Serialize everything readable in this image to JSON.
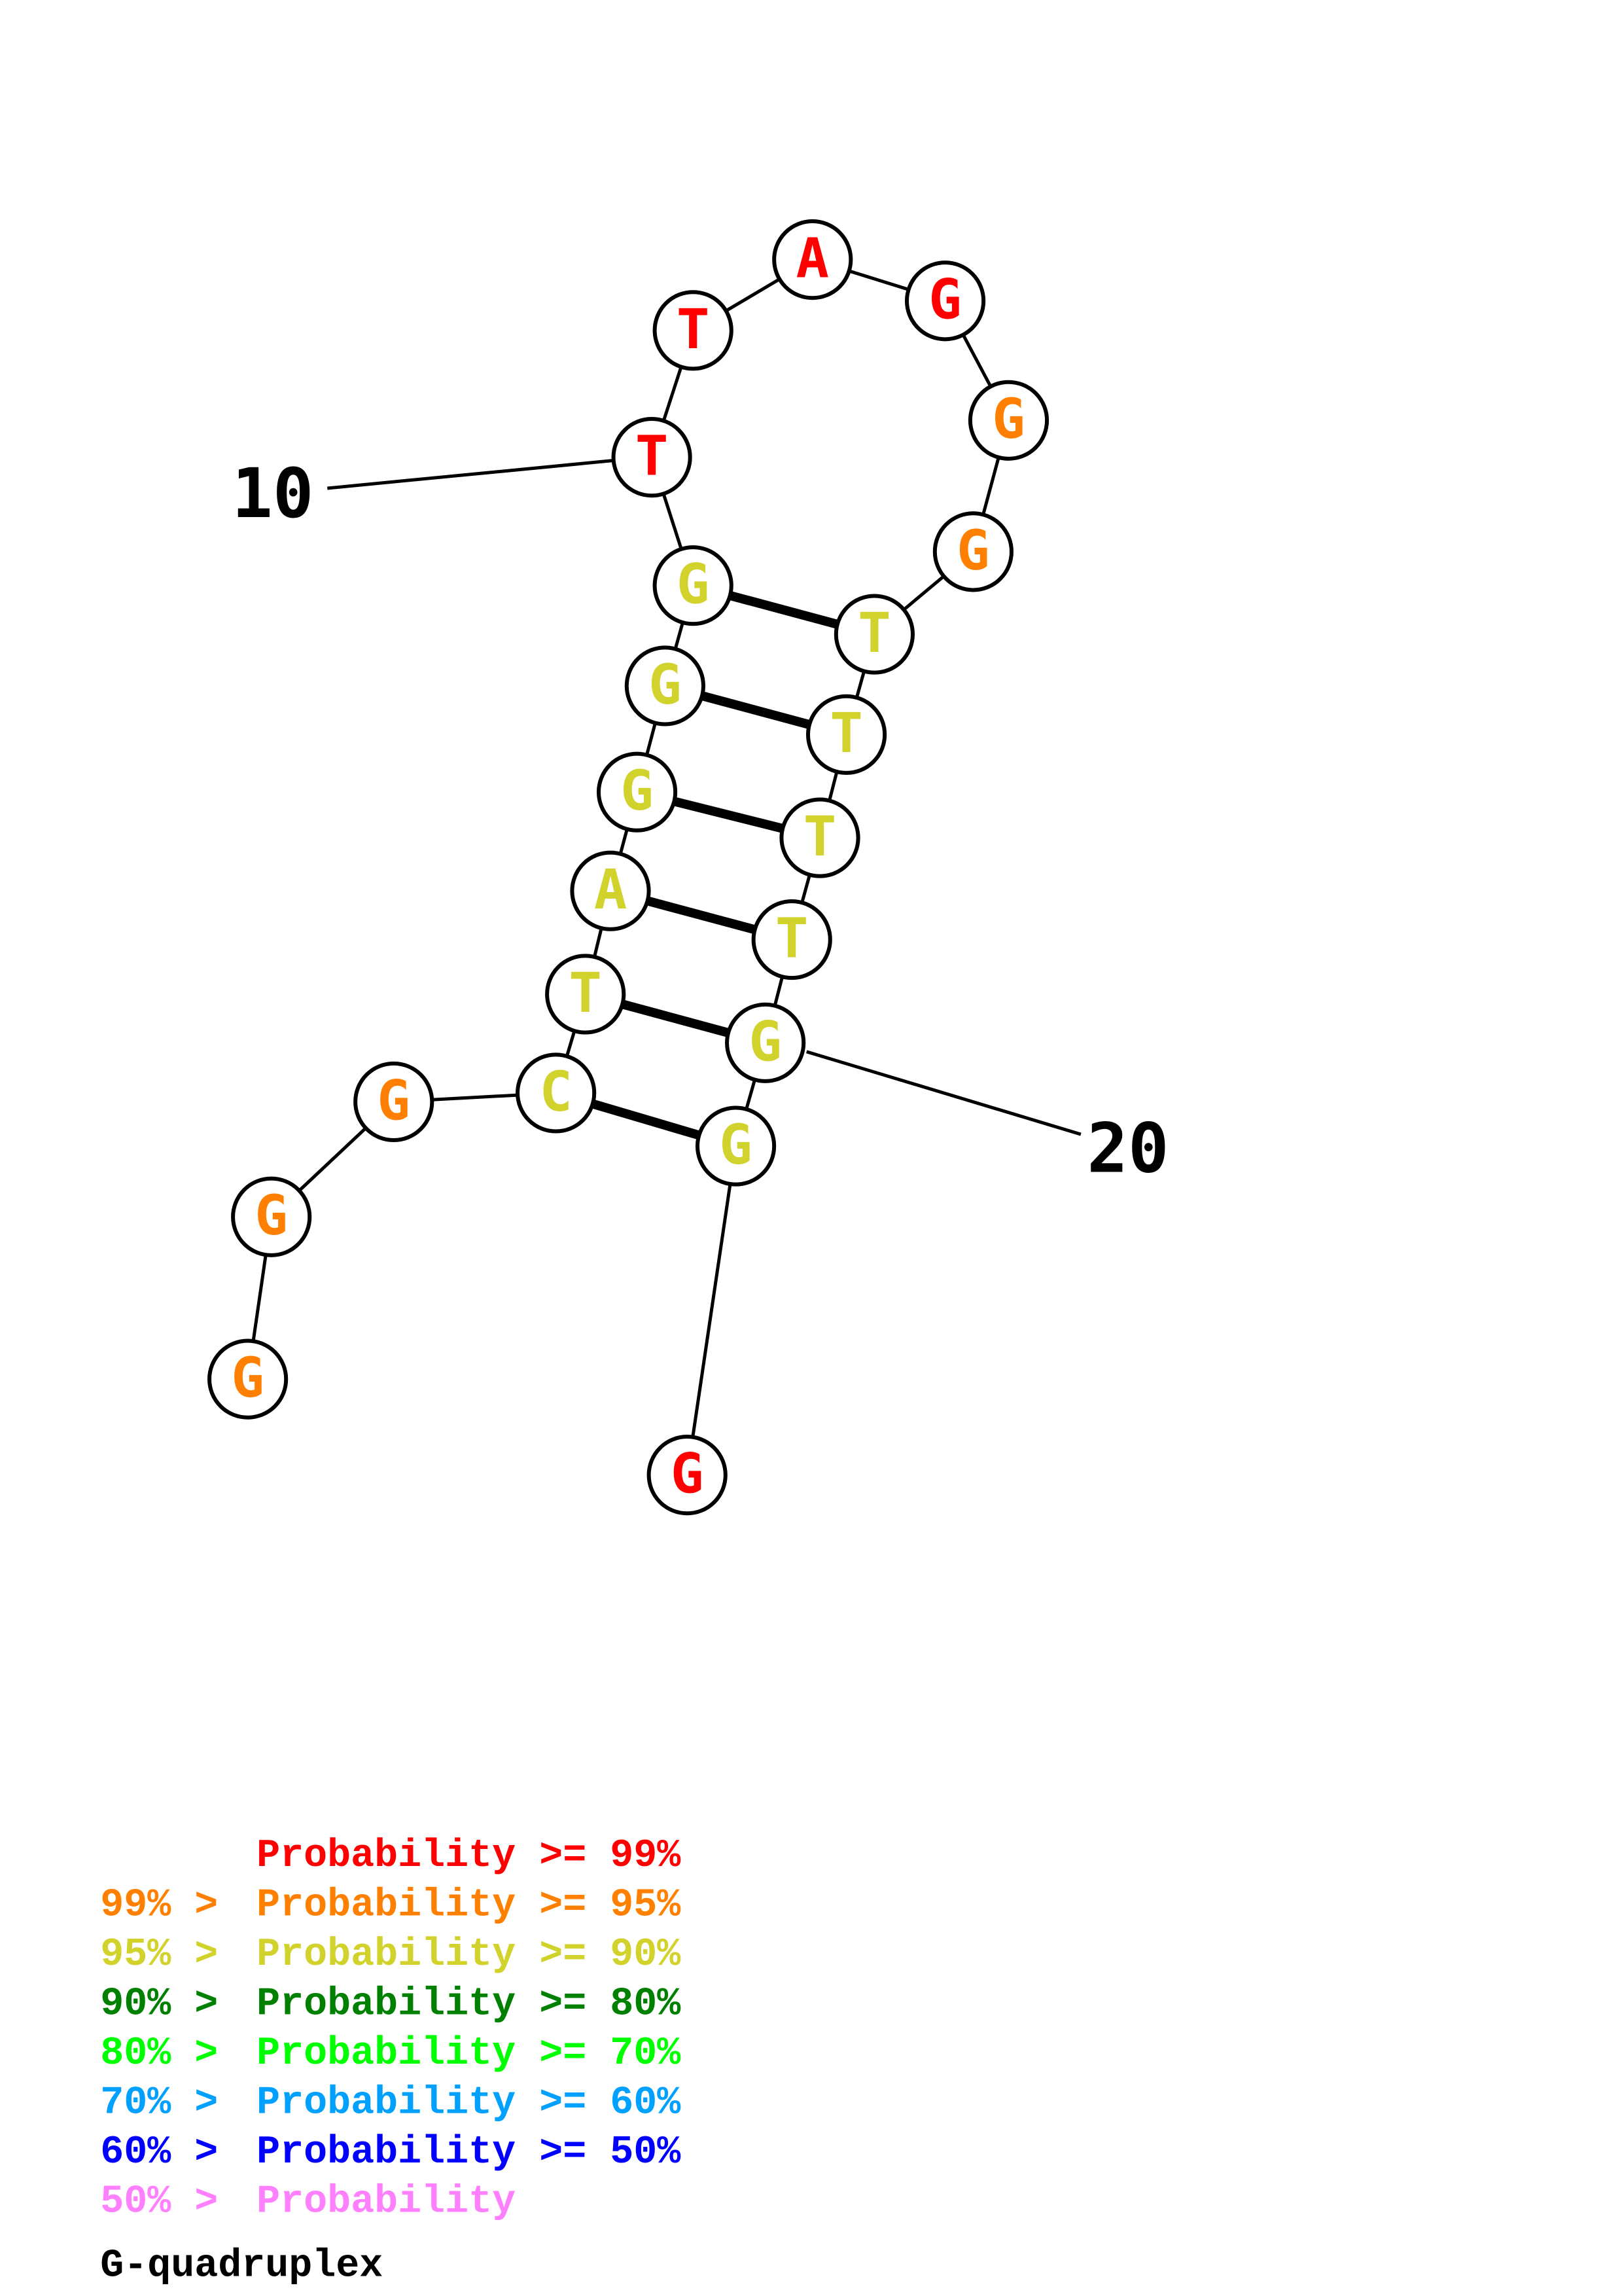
{
  "colors": {
    "p99": "#ff0000",
    "p95": "#ff8000",
    "p90": "#d2d22d",
    "p80": "#008000",
    "p70": "#00ff00",
    "p60": "#00a0ff",
    "p50": "#0000ff",
    "p_low": "#ff80ff",
    "quadruplex": "#000000"
  },
  "structure": {
    "nucleotides": [
      {
        "idx": 1,
        "base": "G",
        "prob": "p95"
      },
      {
        "idx": 2,
        "base": "G",
        "prob": "p95"
      },
      {
        "idx": 3,
        "base": "G",
        "prob": "p95"
      },
      {
        "idx": 4,
        "base": "C",
        "prob": "p90"
      },
      {
        "idx": 5,
        "base": "T",
        "prob": "p90"
      },
      {
        "idx": 6,
        "base": "A",
        "prob": "p90"
      },
      {
        "idx": 7,
        "base": "G",
        "prob": "p90"
      },
      {
        "idx": 8,
        "base": "G",
        "prob": "p90"
      },
      {
        "idx": 9,
        "base": "G",
        "prob": "p90"
      },
      {
        "idx": 10,
        "base": "T",
        "prob": "p99"
      },
      {
        "idx": 11,
        "base": "T",
        "prob": "p99"
      },
      {
        "idx": 12,
        "base": "A",
        "prob": "p99"
      },
      {
        "idx": 13,
        "base": "G",
        "prob": "p99"
      },
      {
        "idx": 14,
        "base": "G",
        "prob": "p95"
      },
      {
        "idx": 15,
        "base": "G",
        "prob": "p95"
      },
      {
        "idx": 16,
        "base": "T",
        "prob": "p90"
      },
      {
        "idx": 17,
        "base": "T",
        "prob": "p90"
      },
      {
        "idx": 18,
        "base": "T",
        "prob": "p90"
      },
      {
        "idx": 19,
        "base": "T",
        "prob": "p90"
      },
      {
        "idx": 20,
        "base": "G",
        "prob": "p90"
      },
      {
        "idx": 21,
        "base": "G",
        "prob": "p90"
      },
      {
        "idx": 22,
        "base": "G",
        "prob": "p99"
      }
    ],
    "pairs": [
      [
        9,
        16
      ],
      [
        8,
        17
      ],
      [
        7,
        18
      ],
      [
        6,
        19
      ],
      [
        5,
        20
      ],
      [
        4,
        21
      ]
    ],
    "position_labels": [
      {
        "text": "10",
        "nuc": 10
      },
      {
        "text": "20",
        "nuc": 20
      }
    ]
  },
  "legend": {
    "rows": [
      {
        "prefix": "",
        "label": "Probability >= 99%",
        "color": "p99"
      },
      {
        "prefix": "99% > ",
        "label": "Probability >= 95%",
        "color": "p95"
      },
      {
        "prefix": "95% > ",
        "label": "Probability >= 90%",
        "color": "p90"
      },
      {
        "prefix": "90% > ",
        "label": "Probability >= 80%",
        "color": "p80"
      },
      {
        "prefix": "80% > ",
        "label": "Probability >= 70%",
        "color": "p70"
      },
      {
        "prefix": "70% > ",
        "label": "Probability >= 60%",
        "color": "p60"
      },
      {
        "prefix": "60% > ",
        "label": "Probability >= 50%",
        "color": "p50"
      },
      {
        "prefix": "50% > ",
        "label": "Probability",
        "color": "p_low"
      }
    ],
    "quadruplex_label": "G-quadruplex"
  }
}
